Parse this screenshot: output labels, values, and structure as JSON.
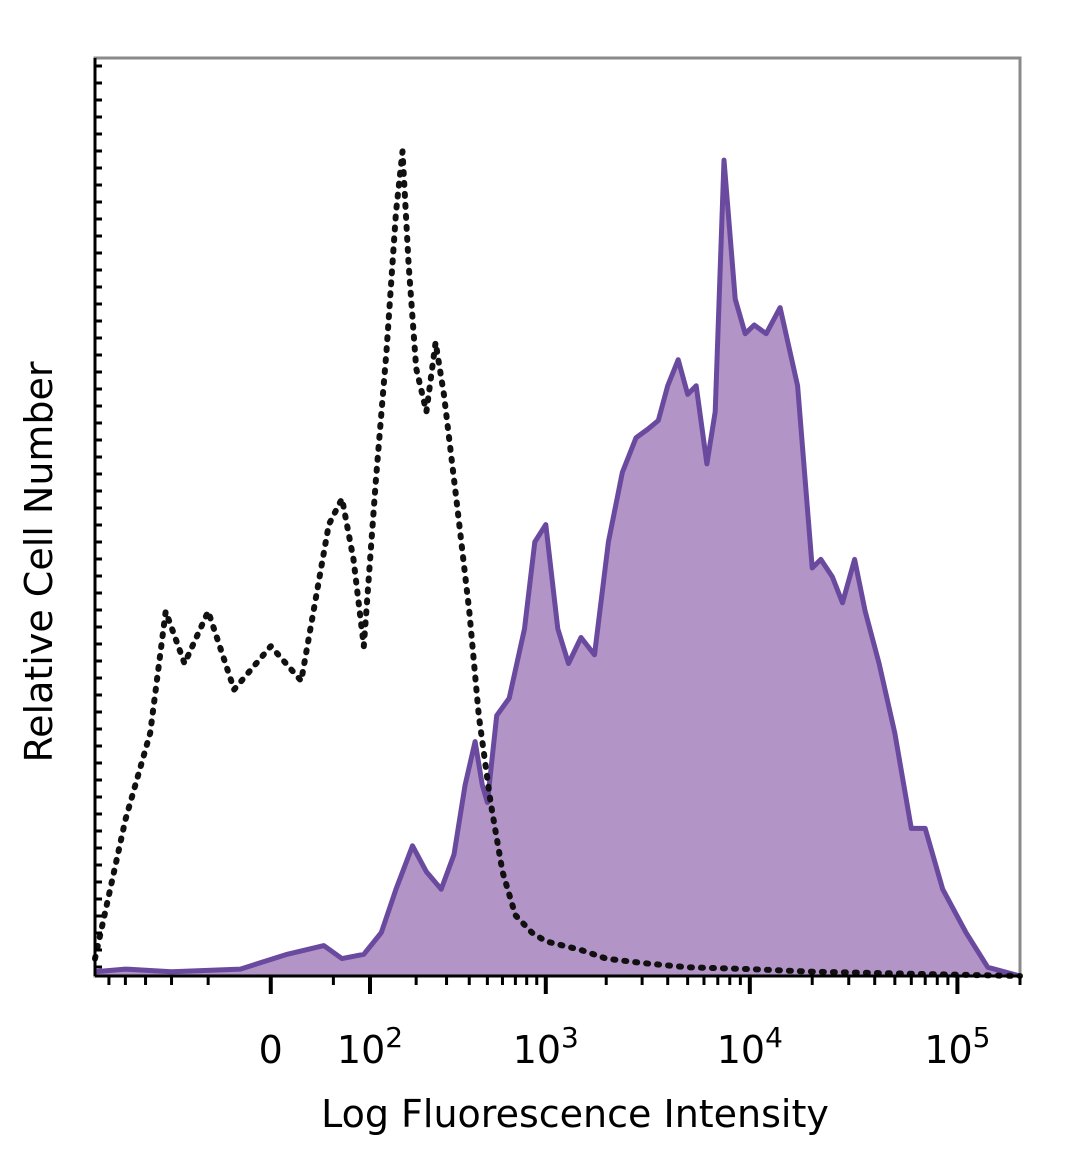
{
  "chart_data": {
    "type": "area",
    "title": "",
    "xlabel": "Log Fluorescence Intensity",
    "ylabel": "Relative Cell Number",
    "x_scale": "biexponential",
    "x_tick_labels": [
      {
        "base": "0",
        "exp": "",
        "value": 0
      },
      {
        "base": "10",
        "exp": "2",
        "value": 100
      },
      {
        "base": "10",
        "exp": "3",
        "value": 1000
      },
      {
        "base": "10",
        "exp": "4",
        "value": 10000
      },
      {
        "base": "10",
        "exp": "5",
        "value": 100000
      }
    ],
    "xlim": [
      -300,
      200000
    ],
    "ylim": [
      0,
      100
    ],
    "grid": false,
    "legend": "none",
    "series": [
      {
        "style": "dotted-line",
        "color": "#111111",
        "points": [
          [
            -300,
            2
          ],
          [
            -200,
            18
          ],
          [
            -140,
            28
          ],
          [
            -110,
            42
          ],
          [
            -80,
            36
          ],
          [
            -50,
            42
          ],
          [
            -25,
            33
          ],
          [
            0,
            38
          ],
          [
            20,
            34
          ],
          [
            45,
            52
          ],
          [
            60,
            55
          ],
          [
            75,
            48
          ],
          [
            90,
            38
          ],
          [
            110,
            57
          ],
          [
            130,
            72
          ],
          [
            150,
            88
          ],
          [
            165,
            95
          ],
          [
            180,
            82
          ],
          [
            200,
            70
          ],
          [
            230,
            65
          ],
          [
            260,
            73
          ],
          [
            290,
            67
          ],
          [
            340,
            55
          ],
          [
            400,
            42
          ],
          [
            450,
            30
          ],
          [
            520,
            20
          ],
          [
            600,
            12
          ],
          [
            700,
            7
          ],
          [
            850,
            5
          ],
          [
            1000,
            4
          ],
          [
            1500,
            3
          ],
          [
            2000,
            2
          ],
          [
            3000,
            1.5
          ],
          [
            5000,
            1
          ],
          [
            10000,
            0.8
          ],
          [
            20000,
            0.5
          ],
          [
            50000,
            0.3
          ],
          [
            200000,
            0
          ]
        ]
      },
      {
        "style": "filled-area",
        "color": "#6a4a9e",
        "fill": "#b294c7",
        "points": [
          [
            -300,
            0.5
          ],
          [
            -200,
            0.8
          ],
          [
            -100,
            0.5
          ],
          [
            -20,
            0.8
          ],
          [
            10,
            2.5
          ],
          [
            40,
            3.5
          ],
          [
            60,
            2
          ],
          [
            90,
            2.5
          ],
          [
            120,
            5
          ],
          [
            150,
            10
          ],
          [
            190,
            15
          ],
          [
            230,
            12
          ],
          [
            280,
            10
          ],
          [
            330,
            14
          ],
          [
            380,
            22
          ],
          [
            430,
            27
          ],
          [
            470,
            22
          ],
          [
            500,
            20
          ],
          [
            560,
            30
          ],
          [
            650,
            32
          ],
          [
            780,
            40
          ],
          [
            880,
            50
          ],
          [
            1000,
            52
          ],
          [
            1150,
            40
          ],
          [
            1300,
            36
          ],
          [
            1500,
            39
          ],
          [
            1750,
            37
          ],
          [
            2050,
            50
          ],
          [
            2400,
            58
          ],
          [
            2800,
            62
          ],
          [
            3200,
            63
          ],
          [
            3600,
            64
          ],
          [
            4000,
            68
          ],
          [
            4500,
            71
          ],
          [
            5000,
            67
          ],
          [
            5500,
            68
          ],
          [
            6200,
            59
          ],
          [
            6800,
            65
          ],
          [
            7500,
            94
          ],
          [
            8500,
            78
          ],
          [
            9500,
            74
          ],
          [
            10500,
            75
          ],
          [
            12000,
            74
          ],
          [
            14000,
            77
          ],
          [
            17000,
            68
          ],
          [
            20000,
            47
          ],
          [
            22000,
            48
          ],
          [
            25000,
            46
          ],
          [
            28000,
            43
          ],
          [
            32000,
            48
          ],
          [
            36000,
            42
          ],
          [
            42000,
            36
          ],
          [
            50000,
            28
          ],
          [
            60000,
            17
          ],
          [
            70000,
            17
          ],
          [
            85000,
            10
          ],
          [
            110000,
            5
          ],
          [
            140000,
            1
          ],
          [
            200000,
            0
          ]
        ]
      }
    ]
  }
}
